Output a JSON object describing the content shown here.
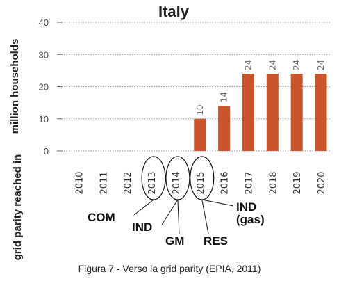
{
  "chart_data": {
    "type": "bar",
    "title": "Italy",
    "ylabel": "million households",
    "xlabel": "grid parity reached in",
    "categories": [
      "2010",
      "2011",
      "2012",
      "2013",
      "2014",
      "2015",
      "2016",
      "2017",
      "2018",
      "2019",
      "2020"
    ],
    "values": [
      0,
      0,
      0,
      0,
      0,
      10,
      14,
      24,
      24,
      24,
      24
    ],
    "data_labels": [
      "",
      "",
      "",
      "",
      "",
      "10",
      "14",
      "24",
      "24",
      "24",
      "24"
    ],
    "ylim": [
      0,
      40
    ],
    "yticks": [
      0,
      10,
      20,
      30,
      40
    ],
    "grid": true,
    "bar_color": "#c8562a",
    "annotations": [
      {
        "text": "COM",
        "year": "2013"
      },
      {
        "text": "IND",
        "year": "2014"
      },
      {
        "text": "GM",
        "year": "2014"
      },
      {
        "text": "RES",
        "year": "2015"
      },
      {
        "text": "IND",
        "sub": "(gas)",
        "year": "2015"
      }
    ]
  },
  "caption": "Figura 7 - Verso la grid parity (EPIA, 2011)"
}
